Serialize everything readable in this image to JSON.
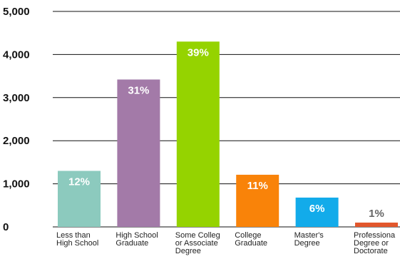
{
  "chart_data": {
    "type": "bar",
    "categories": [
      [
        "Less than",
        "High School"
      ],
      [
        "High School",
        "Graduate"
      ],
      [
        "Some Colleg",
        "or Associate",
        "Degree"
      ],
      [
        "College",
        "Graduate"
      ],
      [
        "Master's",
        "Degree"
      ],
      [
        "Professiona",
        "Degree or",
        "Doctorate"
      ]
    ],
    "values": [
      1300,
      3420,
      4300,
      1210,
      680,
      100
    ],
    "data_labels": [
      "12%",
      "31%",
      "39%",
      "11%",
      "6%",
      "1%"
    ],
    "bar_colors": [
      "#8ccabe",
      "#a37aa8",
      "#95d300",
      "#f98309",
      "#12abea",
      "#e2572c"
    ],
    "label_colors": [
      "#ffffff",
      "#ffffff",
      "#ffffff",
      "#ffffff",
      "#ffffff",
      "#666666"
    ],
    "yticks": [
      "0",
      "1,000",
      "2,000",
      "3,000",
      "4,000",
      "5,000"
    ],
    "ytick_values": [
      0,
      1000,
      2000,
      3000,
      4000,
      5000
    ],
    "ylim": [
      0,
      5000
    ],
    "grid": true,
    "legend": "none",
    "title": "",
    "xlabel": "",
    "ylabel": ""
  }
}
